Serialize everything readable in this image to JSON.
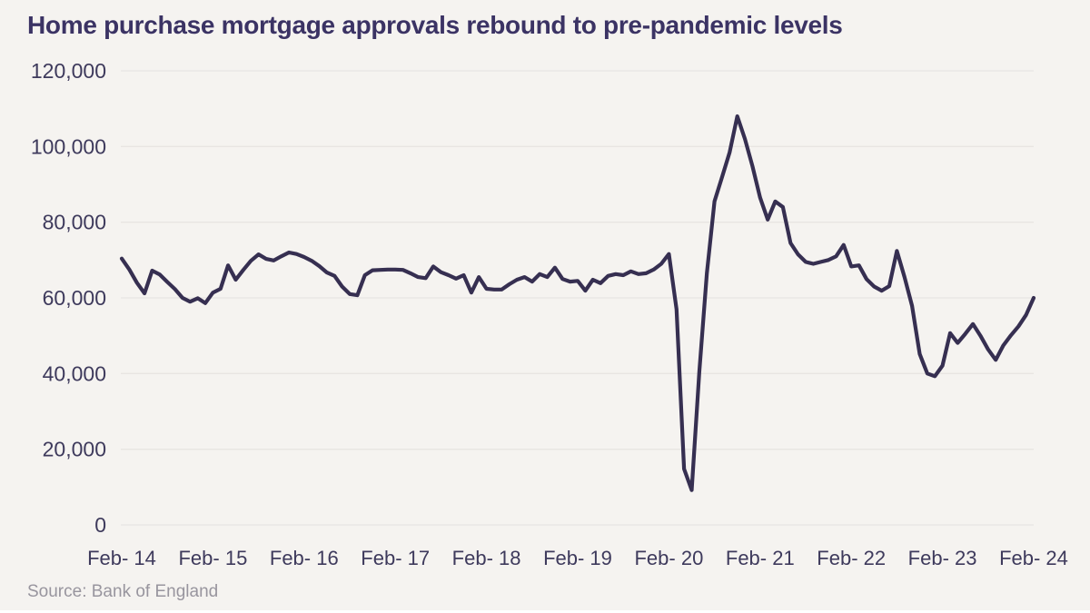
{
  "title": "Home purchase mortgage approvals rebound to pre-pandemic levels",
  "source": "Source: Bank of England",
  "colors": {
    "background": "#f5f3f0",
    "line": "#362f51",
    "title_text": "#3b3364",
    "axis_text": "#3e3a5c",
    "gridline": "#e8e5e2",
    "source_text": "#98959e",
    "bottom_strip": "#ffffff"
  },
  "chart_data": {
    "type": "line",
    "title": "Home purchase mortgage approvals rebound to pre-pandemic levels",
    "xlabel": "",
    "ylabel": "",
    "ylim": [
      0,
      120000
    ],
    "y_ticks": [
      0,
      20000,
      40000,
      60000,
      80000,
      100000,
      120000
    ],
    "y_tick_labels": [
      "0",
      "20,000",
      "40,000",
      "60,000",
      "80,000",
      "100,000",
      "120,000"
    ],
    "x_tick_labels": [
      "Feb- 14",
      "Feb- 15",
      "Feb- 16",
      "Feb- 17",
      "Feb- 18",
      "Feb- 19",
      "Feb- 20",
      "Feb- 21",
      "Feb- 22",
      "Feb- 23",
      "Feb- 24"
    ],
    "months_per_x_tick": 12,
    "grid": "horizontal",
    "legend": "none",
    "series": [
      {
        "name": "Home purchase mortgage approvals",
        "values": [
          70400,
          67500,
          64000,
          61200,
          67200,
          66200,
          64200,
          62300,
          60000,
          59000,
          59900,
          58600,
          61400,
          62400,
          68600,
          64800,
          67400,
          69800,
          71500,
          70300,
          69900,
          71000,
          72000,
          71600,
          70800,
          69800,
          68400,
          66700,
          65800,
          63000,
          61000,
          60700,
          66000,
          67300,
          67400,
          67500,
          67500,
          67400,
          66500,
          65500,
          65200,
          68300,
          66800,
          66000,
          65100,
          66000,
          61400,
          65500,
          62400,
          62200,
          62200,
          63600,
          64800,
          65500,
          64300,
          66300,
          65500,
          68000,
          65000,
          64300,
          64500,
          61900,
          64800,
          63900,
          65800,
          66300,
          66000,
          67000,
          66300,
          66500,
          67500,
          69000,
          71600,
          57000,
          14800,
          9200,
          40500,
          66500,
          85500,
          92000,
          98500,
          108000,
          102000,
          94800,
          86500,
          80700,
          85500,
          84000,
          74500,
          71500,
          69500,
          69000,
          69500,
          70000,
          71000,
          74000,
          68300,
          68600,
          65000,
          63000,
          61900,
          63100,
          72400,
          65500,
          57900,
          45200,
          40000,
          39300,
          42100,
          50700,
          48100,
          50500,
          53100,
          50000,
          46400,
          43600,
          47400,
          50100,
          52500,
          55500,
          60000
        ]
      }
    ]
  }
}
